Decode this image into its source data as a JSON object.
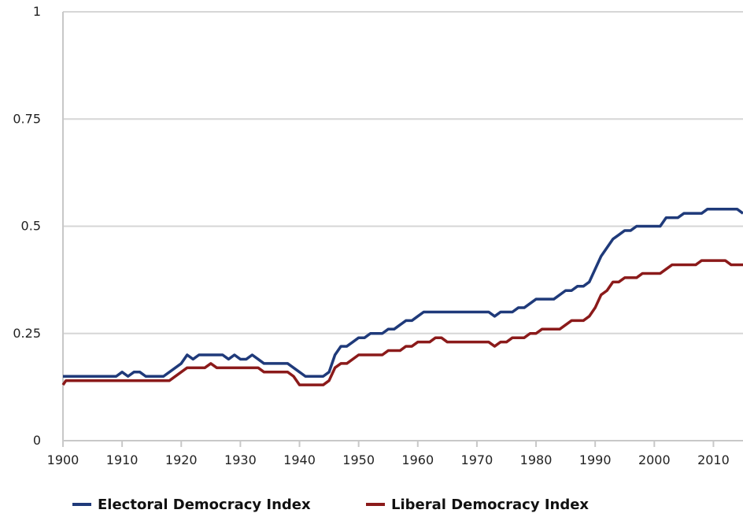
{
  "chart_data": {
    "type": "line",
    "title": "",
    "xlabel": "",
    "ylabel": "",
    "xlim": [
      1900,
      2015
    ],
    "ylim": [
      0,
      1
    ],
    "x_ticks": [
      "1900",
      "1910",
      "1920",
      "1930",
      "1940",
      "1950",
      "1960",
      "1970",
      "1980",
      "1990",
      "2000",
      "2010"
    ],
    "y_ticks": [
      "0",
      "0.25",
      "0.5",
      "0.75",
      "1"
    ],
    "grid": "horizontal",
    "legend_position": "bottom",
    "series": [
      {
        "name": "Electoral Democracy Index",
        "color": "#1f3a7a",
        "points": [
          [
            1900,
            0.15
          ],
          [
            1909,
            0.15
          ],
          [
            1910,
            0.16
          ],
          [
            1911,
            0.15
          ],
          [
            1912,
            0.16
          ],
          [
            1913,
            0.16
          ],
          [
            1914,
            0.15
          ],
          [
            1917,
            0.15
          ],
          [
            1920,
            0.18
          ],
          [
            1921,
            0.2
          ],
          [
            1922,
            0.19
          ],
          [
            1923,
            0.2
          ],
          [
            1927,
            0.2
          ],
          [
            1928,
            0.19
          ],
          [
            1929,
            0.2
          ],
          [
            1930,
            0.19
          ],
          [
            1931,
            0.19
          ],
          [
            1932,
            0.2
          ],
          [
            1933,
            0.19
          ],
          [
            1934,
            0.18
          ],
          [
            1938,
            0.18
          ],
          [
            1940,
            0.16
          ],
          [
            1941,
            0.15
          ],
          [
            1944,
            0.15
          ],
          [
            1945,
            0.16
          ],
          [
            1946,
            0.2
          ],
          [
            1947,
            0.22
          ],
          [
            1948,
            0.22
          ],
          [
            1949,
            0.23
          ],
          [
            1950,
            0.24
          ],
          [
            1951,
            0.24
          ],
          [
            1952,
            0.25
          ],
          [
            1954,
            0.25
          ],
          [
            1955,
            0.26
          ],
          [
            1956,
            0.26
          ],
          [
            1957,
            0.27
          ],
          [
            1958,
            0.28
          ],
          [
            1959,
            0.28
          ],
          [
            1960,
            0.29
          ],
          [
            1961,
            0.3
          ],
          [
            1972,
            0.3
          ],
          [
            1973,
            0.29
          ],
          [
            1974,
            0.3
          ],
          [
            1976,
            0.3
          ],
          [
            1977,
            0.31
          ],
          [
            1978,
            0.31
          ],
          [
            1980,
            0.33
          ],
          [
            1983,
            0.33
          ],
          [
            1985,
            0.35
          ],
          [
            1986,
            0.35
          ],
          [
            1987,
            0.36
          ],
          [
            1988,
            0.36
          ],
          [
            1989,
            0.37
          ],
          [
            1990,
            0.4
          ],
          [
            1991,
            0.43
          ],
          [
            1992,
            0.45
          ],
          [
            1993,
            0.47
          ],
          [
            1994,
            0.48
          ],
          [
            1995,
            0.49
          ],
          [
            1996,
            0.49
          ],
          [
            1997,
            0.5
          ],
          [
            2001,
            0.5
          ],
          [
            2002,
            0.52
          ],
          [
            2004,
            0.52
          ],
          [
            2005,
            0.53
          ],
          [
            2008,
            0.53
          ],
          [
            2009,
            0.54
          ],
          [
            2014,
            0.54
          ],
          [
            2015,
            0.53
          ]
        ]
      },
      {
        "name": "Liberal Democracy Index",
        "color": "#8b1a1a",
        "points": [
          [
            1900,
            0.13
          ],
          [
            1900.5,
            0.14
          ],
          [
            1918,
            0.14
          ],
          [
            1921,
            0.17
          ],
          [
            1924,
            0.17
          ],
          [
            1925,
            0.18
          ],
          [
            1926,
            0.17
          ],
          [
            1933,
            0.17
          ],
          [
            1934,
            0.16
          ],
          [
            1938,
            0.16
          ],
          [
            1939,
            0.15
          ],
          [
            1940,
            0.13
          ],
          [
            1944,
            0.13
          ],
          [
            1945,
            0.14
          ],
          [
            1946,
            0.17
          ],
          [
            1947,
            0.18
          ],
          [
            1948,
            0.18
          ],
          [
            1950,
            0.2
          ],
          [
            1954,
            0.2
          ],
          [
            1955,
            0.21
          ],
          [
            1957,
            0.21
          ],
          [
            1958,
            0.22
          ],
          [
            1959,
            0.22
          ],
          [
            1960,
            0.23
          ],
          [
            1962,
            0.23
          ],
          [
            1963,
            0.24
          ],
          [
            1964,
            0.24
          ],
          [
            1965,
            0.23
          ],
          [
            1972,
            0.23
          ],
          [
            1973,
            0.22
          ],
          [
            1974,
            0.23
          ],
          [
            1975,
            0.23
          ],
          [
            1976,
            0.24
          ],
          [
            1978,
            0.24
          ],
          [
            1979,
            0.25
          ],
          [
            1980,
            0.25
          ],
          [
            1981,
            0.26
          ],
          [
            1984,
            0.26
          ],
          [
            1986,
            0.28
          ],
          [
            1988,
            0.28
          ],
          [
            1989,
            0.29
          ],
          [
            1990,
            0.31
          ],
          [
            1991,
            0.34
          ],
          [
            1992,
            0.35
          ],
          [
            1993,
            0.37
          ],
          [
            1994,
            0.37
          ],
          [
            1995,
            0.38
          ],
          [
            1997,
            0.38
          ],
          [
            1998,
            0.39
          ],
          [
            2001,
            0.39
          ],
          [
            2003,
            0.41
          ],
          [
            2007,
            0.41
          ],
          [
            2008,
            0.42
          ],
          [
            2012,
            0.42
          ],
          [
            2013,
            0.41
          ],
          [
            2015,
            0.41
          ]
        ]
      }
    ]
  }
}
